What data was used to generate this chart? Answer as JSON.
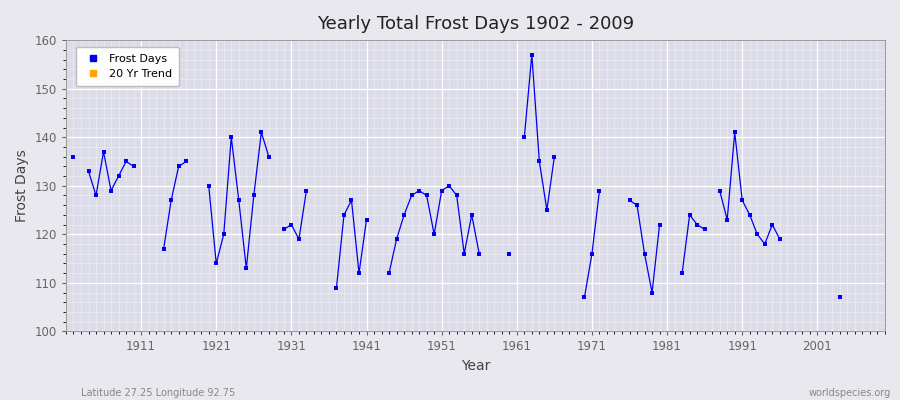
{
  "title": "Yearly Total Frost Days 1902 - 2009",
  "xlabel": "Year",
  "ylabel": "Frost Days",
  "xlim": [
    1901,
    2010
  ],
  "ylim": [
    100,
    160
  ],
  "yticks": [
    100,
    110,
    120,
    130,
    140,
    150,
    160
  ],
  "xticks": [
    1911,
    1921,
    1931,
    1941,
    1951,
    1961,
    1971,
    1981,
    1991,
    2001
  ],
  "line_color": "#0000ee",
  "fig_bg_color": "#e8e8ee",
  "plot_bg_color": "#dcdce8",
  "footer_left": "Latitude 27.25 Longitude 92.75",
  "footer_right": "worldspecies.org",
  "legend_entries": [
    "Frost Days",
    "20 Yr Trend"
  ],
  "legend_colors": [
    "#0000ee",
    "#FFA500"
  ],
  "data": {
    "1902": 136,
    "1904": 133,
    "1905": 128,
    "1906": 137,
    "1907": 129,
    "1908": 132,
    "1909": 135,
    "1910": 134,
    "1914": 117,
    "1915": 127,
    "1916": 134,
    "1917": 135,
    "1920": 130,
    "1921": 114,
    "1922": 120,
    "1923": 140,
    "1924": 127,
    "1925": 113,
    "1926": 128,
    "1927": 141,
    "1928": 136,
    "1930": 121,
    "1931": 122,
    "1932": 119,
    "1933": 129,
    "1937": 109,
    "1938": 124,
    "1939": 127,
    "1940": 112,
    "1941": 123,
    "1944": 112,
    "1945": 119,
    "1946": 124,
    "1947": 128,
    "1948": 129,
    "1949": 128,
    "1950": 120,
    "1951": 129,
    "1952": 130,
    "1953": 128,
    "1954": 116,
    "1955": 124,
    "1956": 116,
    "1960": 116,
    "1962": 140,
    "1963": 157,
    "1964": 135,
    "1965": 125,
    "1966": 136,
    "1970": 107,
    "1971": 116,
    "1972": 129,
    "1976": 127,
    "1977": 126,
    "1978": 116,
    "1979": 108,
    "1980": 122,
    "1983": 112,
    "1984": 124,
    "1985": 122,
    "1986": 121,
    "1988": 129,
    "1989": 123,
    "1990": 141,
    "1991": 127,
    "1992": 124,
    "1993": 120,
    "1994": 118,
    "1995": 122,
    "1996": 119,
    "2004": 107
  }
}
